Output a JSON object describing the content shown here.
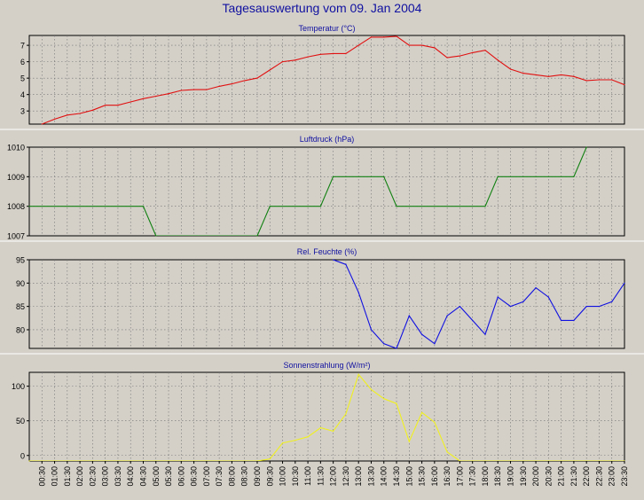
{
  "title": "Tagesauswertung vom 09. Jan 2004",
  "colors": {
    "background": "#d4d0c8",
    "title": "#1010a0",
    "temperature": "#e01010",
    "pressure": "#108010",
    "humidity": "#1010e0",
    "radiation": "#f0f020"
  },
  "chart_data": [
    {
      "type": "line",
      "title": "Temperatur (°C)",
      "ylim": [
        2.2,
        7.6
      ],
      "yticks": [
        3,
        4,
        5,
        6,
        7
      ],
      "grid": true,
      "series": [
        {
          "color": "#e01010",
          "x": [
            0.5,
            1,
            1.5,
            2,
            2.5,
            3,
            3.5,
            4,
            4.5,
            5,
            5.5,
            6,
            6.5,
            7,
            7.5,
            8,
            8.5,
            9,
            9.5,
            10,
            10.5,
            11,
            11.5,
            12,
            12.5,
            13,
            13.5,
            14,
            14.5,
            15,
            15.5,
            16,
            16.5,
            17,
            17.5,
            18,
            18.5,
            19,
            19.5,
            20,
            20.5,
            21,
            21.5,
            22,
            22.5,
            23,
            23.5
          ],
          "values": [
            2.2,
            2.5,
            2.75,
            2.85,
            3.05,
            3.35,
            3.35,
            3.55,
            3.75,
            3.9,
            4.05,
            4.25,
            4.3,
            4.3,
            4.5,
            4.65,
            4.85,
            5.0,
            5.5,
            6.0,
            6.1,
            6.3,
            6.45,
            6.5,
            6.5,
            7.0,
            7.5,
            7.5,
            7.55,
            7.0,
            7.0,
            6.85,
            6.25,
            6.35,
            6.55,
            6.7,
            6.1,
            5.55,
            5.3,
            5.2,
            5.1,
            5.2,
            5.1,
            4.85,
            4.9,
            4.9,
            4.6
          ]
        }
      ]
    },
    {
      "type": "line",
      "title": "Luftdruck (hPa)",
      "ylim": [
        1007,
        1010
      ],
      "yticks": [
        1007,
        1008,
        1009,
        1010
      ],
      "grid": true,
      "series": [
        {
          "color": "#108010",
          "x": [
            0,
            4.5,
            5,
            9,
            9.5,
            11.5,
            12,
            14,
            14.5,
            18,
            18.5,
            21.5,
            22
          ],
          "values": [
            1008,
            1008,
            1007,
            1007,
            1008,
            1008,
            1009,
            1009,
            1008,
            1008,
            1009,
            1009,
            1010
          ]
        }
      ]
    },
    {
      "type": "line",
      "title": "Rel. Feuchte (%)",
      "ylim": [
        76,
        95
      ],
      "yticks": [
        80,
        85,
        90,
        95
      ],
      "grid": true,
      "series": [
        {
          "color": "#1010e0",
          "x": [
            12,
            12.5,
            13,
            13.5,
            14,
            14.5,
            15,
            15.5,
            16,
            16.5,
            17,
            17.5,
            18,
            18.5,
            19,
            19.5,
            20,
            20.5,
            21,
            21.5,
            22,
            22.5,
            23,
            23.5
          ],
          "values": [
            95,
            94,
            88,
            80,
            77,
            76,
            83,
            79,
            77,
            83,
            85,
            82,
            79,
            87,
            85,
            86,
            89,
            87,
            82,
            82,
            85,
            85,
            86,
            90
          ]
        }
      ]
    },
    {
      "type": "line",
      "title": "Sonnenstrahlung (W/m²)",
      "ylim": [
        -8,
        120
      ],
      "yticks": [
        0,
        50,
        100
      ],
      "grid": true,
      "xticks": [
        "00:30",
        "01:00",
        "01:30",
        "02:00",
        "02:30",
        "03:00",
        "03:30",
        "04:00",
        "04:30",
        "05:00",
        "05:30",
        "06:00",
        "06:30",
        "07:00",
        "07:30",
        "08:00",
        "08:30",
        "09:00",
        "09:30",
        "10:00",
        "10:30",
        "11:00",
        "11:30",
        "12:00",
        "12:30",
        "13:00",
        "13:30",
        "14:00",
        "14:30",
        "15:00",
        "15:30",
        "16:00",
        "16:30",
        "17:00",
        "17:30",
        "18:00",
        "18:30",
        "19:00",
        "19:30",
        "20:00",
        "20:30",
        "21:00",
        "21:30",
        "22:00",
        "22:30",
        "23:00",
        "23:30"
      ],
      "series": [
        {
          "color": "#f0f020",
          "x": [
            0,
            9,
            9.5,
            10,
            10.5,
            11,
            11.5,
            12,
            12.5,
            13,
            13.5,
            14,
            14.5,
            15,
            15.5,
            16,
            16.5,
            17,
            17.5,
            18,
            23.5
          ],
          "values": [
            -8,
            -8,
            -5,
            18,
            22,
            27,
            40,
            35,
            60,
            117,
            95,
            82,
            75,
            20,
            62,
            48,
            5,
            -8,
            -8,
            -8,
            -8
          ]
        }
      ]
    }
  ]
}
